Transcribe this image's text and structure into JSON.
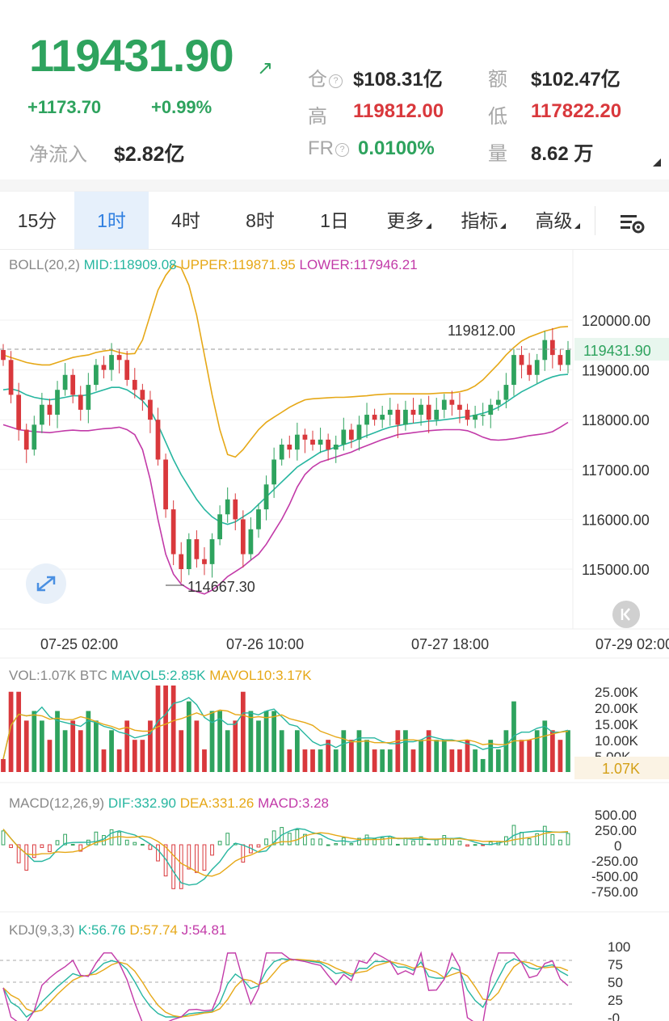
{
  "header": {
    "price": "119431.90",
    "change": "+1173.70",
    "change_pct": "+0.99%",
    "net_inflow_label": "净流入",
    "net_inflow_value": "$2.82亿",
    "oi_label": "仓",
    "oi_value": "$108.31亿",
    "turnover_label": "额",
    "turnover_value": "$102.47亿",
    "high_label": "高",
    "high_value": "119812.00",
    "low_label": "低",
    "low_value": "117822.20",
    "fr_label": "FR",
    "fr_value": "0.0100%",
    "volume_label": "量",
    "volume_value": "8.62 万",
    "up_color": "#2ea35e",
    "down_color": "#d9383c"
  },
  "tabs": [
    {
      "label": "15分",
      "active": false
    },
    {
      "label": "1时",
      "active": true
    },
    {
      "label": "4时",
      "active": false
    },
    {
      "label": "8时",
      "active": false
    },
    {
      "label": "1日",
      "active": false
    },
    {
      "label": "更多",
      "active": false
    },
    {
      "label": "指标",
      "active": false
    },
    {
      "label": "高级",
      "active": false
    }
  ],
  "icons": {
    "settings": "chart-settings-icon",
    "fullscreen": "expand-icon",
    "back": "back-to-latest-icon",
    "trend": "arrow-up-right-icon"
  },
  "boll": {
    "name": "BOLL(20,2)",
    "mid": "MID:118909.08",
    "upper": "UPPER:119871.95",
    "lower": "LOWER:117946.21"
  },
  "vol": {
    "name": "VOL:1.07K BTC",
    "mavol5": "MAVOL5:2.85K",
    "mavol10": "MAVOL10:3.17K",
    "current": "1.07K"
  },
  "macd": {
    "name": "MACD(12,26,9)",
    "dif": "DIF:332.90",
    "dea": "DEA:331.26",
    "macd": "MACD:3.28"
  },
  "kdj": {
    "name": "KDJ(9,3,3)",
    "k": "K:56.76",
    "d": "D:57.74",
    "j": "J:54.81"
  },
  "chart_data": {
    "type": "candlestick",
    "title": "",
    "x_labels": [
      "07-25 02:00",
      "07-26 10:00",
      "07-27 18:00",
      "07-29 02:00"
    ],
    "price_axis": [
      "120000.00",
      "119000.00",
      "118000.00",
      "117000.00",
      "116000.00",
      "115000.00"
    ],
    "y_range": [
      114400,
      121300
    ],
    "last_price": "119431.90",
    "max_label": "119812.00",
    "min_label": "114667.30",
    "candles_close": [
      119200,
      118500,
      117800,
      117400,
      117900,
      118300,
      118100,
      118600,
      118900,
      118500,
      118200,
      118700,
      119100,
      119000,
      119300,
      119200,
      118800,
      118600,
      118400,
      118000,
      117200,
      116200,
      115300,
      115000,
      115600,
      115200,
      115100,
      115600,
      116100,
      116400,
      116000,
      115300,
      115800,
      116200,
      116700,
      117200,
      117500,
      117400,
      117700,
      117600,
      117500,
      117600,
      117400,
      117500,
      117800,
      117600,
      117900,
      118100,
      118000,
      118100,
      118200,
      117900,
      118200,
      118100,
      118300,
      118000,
      118200,
      118400,
      118300,
      118200,
      118000,
      118100,
      118100,
      118300,
      118400,
      118700,
      119300,
      119100,
      118900,
      119200,
      119600,
      119300,
      119100,
      119400
    ],
    "series": [
      {
        "name": "MID",
        "values": [
          118600,
          118620,
          118580,
          118500,
          118450,
          118420,
          118400,
          118420,
          118450,
          118480,
          118480,
          118500,
          118550,
          118600,
          118650,
          118650,
          118600,
          118500,
          118380,
          118200,
          117900,
          117550,
          117200,
          116900,
          116650,
          116400,
          116200,
          116050,
          115950,
          115900,
          115950,
          116050,
          116150,
          116300,
          116450,
          116600,
          116750,
          116900,
          117050,
          117150,
          117250,
          117350,
          117400,
          117450,
          117500,
          117550,
          117620,
          117680,
          117740,
          117800,
          117850,
          117880,
          117910,
          117930,
          117950,
          117970,
          117980,
          118000,
          118020,
          118040,
          118060,
          118090,
          118130,
          118180,
          118250,
          118350,
          118460,
          118560,
          118640,
          118720,
          118800,
          118860,
          118900,
          118910
        ]
      },
      {
        "name": "UPPER",
        "values": [
          119300,
          119250,
          119200,
          119150,
          119120,
          119100,
          119100,
          119150,
          119200,
          119250,
          119280,
          119300,
          119350,
          119380,
          119400,
          119350,
          119320,
          119330,
          119600,
          120100,
          120600,
          120900,
          121100,
          121050,
          120700,
          120100,
          119300,
          118500,
          117800,
          117300,
          117250,
          117400,
          117600,
          117800,
          117950,
          118050,
          118150,
          118250,
          118330,
          118400,
          118420,
          118430,
          118440,
          118450,
          118450,
          118460,
          118470,
          118480,
          118500,
          118510,
          118520,
          118520,
          118520,
          118520,
          118520,
          118520,
          118530,
          118540,
          118540,
          118560,
          118600,
          118680,
          118800,
          118960,
          119120,
          119300,
          119450,
          119580,
          119660,
          119720,
          119780,
          119820,
          119860,
          119872
        ]
      },
      {
        "name": "LOWER",
        "values": [
          117900,
          117850,
          117800,
          117780,
          117760,
          117750,
          117740,
          117760,
          117780,
          117790,
          117780,
          117780,
          117800,
          117820,
          117830,
          117850,
          117800,
          117700,
          117400,
          116800,
          116000,
          115300,
          114900,
          114700,
          114600,
          114550,
          114500,
          114580,
          114700,
          114850,
          114950,
          115050,
          115180,
          115300,
          115500,
          115750,
          116000,
          116300,
          116650,
          116900,
          117050,
          117150,
          117200,
          117250,
          117300,
          117350,
          117420,
          117480,
          117540,
          117600,
          117650,
          117700,
          117720,
          117740,
          117760,
          117780,
          117790,
          117800,
          117800,
          117800,
          117780,
          117720,
          117650,
          117600,
          117590,
          117600,
          117620,
          117650,
          117680,
          117700,
          117720,
          117760,
          117850,
          117946
        ]
      }
    ]
  }
}
